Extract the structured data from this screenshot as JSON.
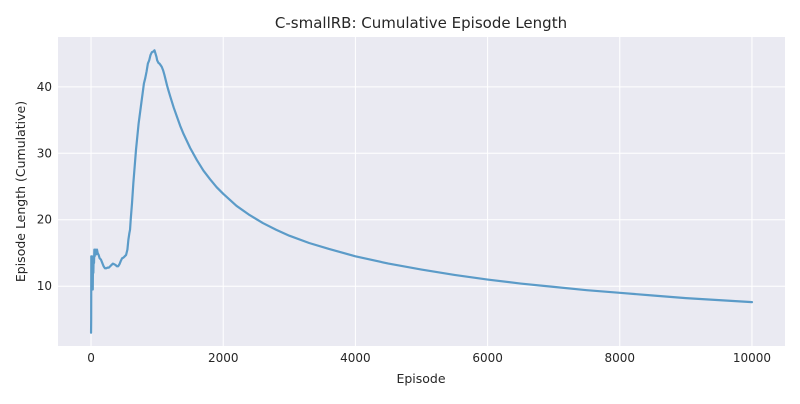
{
  "chart_data": {
    "type": "line",
    "title": "C-smallRB: Cumulative Episode Length",
    "xlabel": "Episode",
    "ylabel": "Episode Length (Cumulative)",
    "xlim": [
      -500,
      10500
    ],
    "ylim": [
      1,
      47.5
    ],
    "xticks": [
      0,
      2000,
      4000,
      6000,
      8000,
      10000
    ],
    "xtick_labels": [
      "0",
      "2000",
      "4000",
      "6000",
      "8000",
      "10000"
    ],
    "yticks": [
      10,
      20,
      30,
      40
    ],
    "ytick_labels": [
      "10",
      "20",
      "30",
      "40"
    ],
    "grid": true,
    "background": "#eaeaf2",
    "grid_color": "#ffffff",
    "series": [
      {
        "color": "#5b9bc8",
        "x": [
          0,
          2,
          4,
          6,
          8,
          10,
          14,
          18,
          22,
          26,
          30,
          35,
          40,
          45,
          50,
          55,
          60,
          70,
          80,
          90,
          100,
          115,
          130,
          150,
          170,
          190,
          210,
          230,
          250,
          270,
          290,
          310,
          330,
          350,
          370,
          390,
          410,
          430,
          450,
          470,
          490,
          510,
          530,
          550,
          565,
          580,
          590,
          600,
          620,
          640,
          660,
          680,
          700,
          720,
          740,
          760,
          780,
          800,
          820,
          840,
          860,
          880,
          900,
          920,
          940,
          960,
          975,
          990,
          1000,
          1010,
          1020,
          1035,
          1050,
          1070,
          1090,
          1110,
          1130,
          1150,
          1170,
          1200,
          1250,
          1300,
          1350,
          1400,
          1500,
          1600,
          1700,
          1800,
          1900,
          2000,
          2200,
          2400,
          2600,
          2800,
          3000,
          3300,
          3600,
          4000,
          4500,
          5000,
          5500,
          6000,
          6500,
          7000,
          7500,
          8000,
          8500,
          9000,
          9500,
          10000
        ],
        "y": [
          3.0,
          5.0,
          14.5,
          9.5,
          13.0,
          12.5,
          14.5,
          10.0,
          13.5,
          9.5,
          14.0,
          12.0,
          14.5,
          13.5,
          15.5,
          14.5,
          15.0,
          15.5,
          14.8,
          15.5,
          15.0,
          14.7,
          14.2,
          14.0,
          13.5,
          13.0,
          12.7,
          12.7,
          12.8,
          12.8,
          13.0,
          13.2,
          13.4,
          13.3,
          13.2,
          13.0,
          13.0,
          13.3,
          13.8,
          14.2,
          14.3,
          14.5,
          14.7,
          15.5,
          17.0,
          18.0,
          18.5,
          20.0,
          22.5,
          25.5,
          28.0,
          30.5,
          32.5,
          34.5,
          36.0,
          37.5,
          39.0,
          40.5,
          41.3,
          42.3,
          43.5,
          44.0,
          44.8,
          45.2,
          45.3,
          45.5,
          45.0,
          44.5,
          44.0,
          43.8,
          43.6,
          43.5,
          43.3,
          43.0,
          42.5,
          41.8,
          41.0,
          40.2,
          39.5,
          38.5,
          36.9,
          35.5,
          34.1,
          32.9,
          30.8,
          29.0,
          27.4,
          26.1,
          24.9,
          23.9,
          22.1,
          20.7,
          19.5,
          18.5,
          17.6,
          16.5,
          15.6,
          14.5,
          13.4,
          12.5,
          11.7,
          11.0,
          10.4,
          9.9,
          9.4,
          9.0,
          8.6,
          8.2,
          7.9,
          7.6
        ]
      }
    ]
  }
}
